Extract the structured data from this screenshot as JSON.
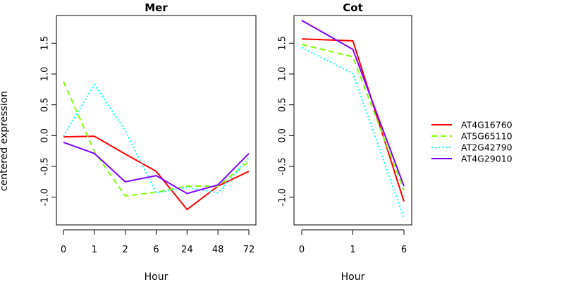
{
  "chart_data": {
    "type": "line",
    "ylabel": "centered expression",
    "legend": {
      "placement": "right",
      "entries": [
        {
          "label": "AT4G16760",
          "color": "#ff0000",
          "dash": "solid"
        },
        {
          "label": "AT5G65110",
          "color": "#80ff00",
          "dash": "dashed"
        },
        {
          "label": "AT2G42790",
          "color": "#00ffff",
          "dash": "dotted"
        },
        {
          "label": "AT4G29010",
          "color": "#8000ff",
          "dash": "solid"
        }
      ]
    },
    "panels": [
      {
        "title": "Mer",
        "xlabel": "Hour",
        "categories": [
          "0",
          "1",
          "2",
          "6",
          "24",
          "48",
          "72"
        ],
        "ylim": [
          -1.45,
          1.95
        ],
        "yticks": [
          -1.0,
          -0.5,
          0.0,
          0.5,
          1.0,
          1.5
        ],
        "series": [
          {
            "name": "AT4G16760",
            "values": [
              -0.02,
              -0.01,
              -0.3,
              -0.58,
              -1.2,
              -0.82,
              -0.58
            ]
          },
          {
            "name": "AT5G65110",
            "values": [
              0.88,
              -0.26,
              -0.98,
              -0.92,
              -0.82,
              -0.82,
              -0.42
            ]
          },
          {
            "name": "AT2G42790",
            "values": [
              -0.01,
              0.83,
              0.08,
              -0.93,
              -0.84,
              -0.93,
              -0.36
            ]
          },
          {
            "name": "AT4G29010",
            "values": [
              -0.11,
              -0.29,
              -0.75,
              -0.65,
              -0.94,
              -0.8,
              -0.29
            ]
          }
        ]
      },
      {
        "title": "Cot",
        "xlabel": "Hour",
        "categories": [
          "0",
          "1",
          "6"
        ],
        "ylim": [
          -1.45,
          1.95
        ],
        "yticks": [
          -1.0,
          -0.5,
          0.0,
          0.5,
          1.0,
          1.5
        ],
        "series": [
          {
            "name": "AT4G16760",
            "values": [
              1.57,
              1.54,
              -1.07
            ]
          },
          {
            "name": "AT5G65110",
            "values": [
              1.48,
              1.28,
              -0.89
            ]
          },
          {
            "name": "AT2G42790",
            "values": [
              1.43,
              1.01,
              -1.34
            ]
          },
          {
            "name": "AT4G29010",
            "values": [
              1.87,
              1.4,
              -0.82
            ]
          }
        ]
      }
    ]
  }
}
